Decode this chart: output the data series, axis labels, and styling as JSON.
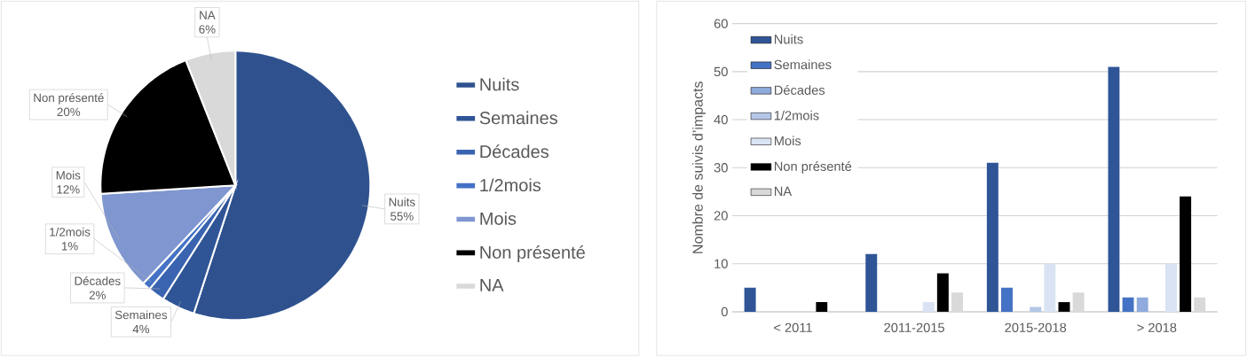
{
  "chart_data": [
    {
      "type": "pie",
      "categories": [
        "Nuits",
        "Semaines",
        "Décades",
        "1/2mois",
        "Mois",
        "Non présenté",
        "NA"
      ],
      "values": [
        55,
        4,
        2,
        1,
        12,
        20,
        6
      ],
      "value_labels": [
        "55%",
        "4%",
        "2%",
        "1%",
        "12%",
        "20%",
        "6%"
      ],
      "colors": [
        "#2f528f",
        "#2f5597",
        "#3a64b0",
        "#4472c4",
        "#7f96d0",
        "#000000",
        "#d9d9d9"
      ],
      "legend": "right"
    },
    {
      "type": "bar",
      "categories": [
        "< 2011",
        "2011-2015",
        "2015-2018",
        "> 2018"
      ],
      "ylabel": "Nombre de suivis d’impacts",
      "ylim": [
        0,
        60
      ],
      "yticks": [
        0,
        10,
        20,
        30,
        40,
        50,
        60
      ],
      "grid": "y",
      "legend": "top left",
      "series": [
        {
          "name": "Nuits",
          "color": "#2f5597",
          "values": [
            5,
            12,
            31,
            51
          ]
        },
        {
          "name": "Semaines",
          "color": "#4472c4",
          "values": [
            0,
            0,
            5,
            3
          ]
        },
        {
          "name": "Décades",
          "color": "#8faadc",
          "values": [
            0,
            0,
            0,
            3
          ]
        },
        {
          "name": "1/2mois",
          "color": "#b4c7e7",
          "values": [
            0,
            0,
            1,
            0
          ]
        },
        {
          "name": "Mois",
          "color": "#dae3f3",
          "values": [
            0,
            2,
            10,
            10
          ]
        },
        {
          "name": "Non présenté",
          "color": "#000000",
          "values": [
            2,
            8,
            2,
            24
          ]
        },
        {
          "name": "NA",
          "color": "#d9d9d9",
          "values": [
            0,
            4,
            4,
            3
          ]
        }
      ]
    }
  ]
}
